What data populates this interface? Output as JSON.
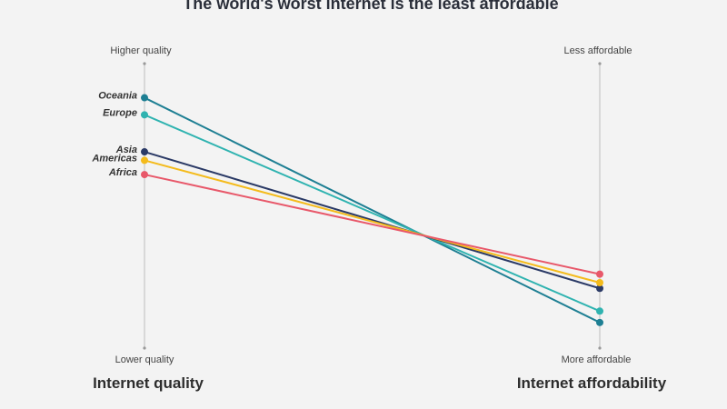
{
  "chart_data": {
    "type": "line",
    "title": "The world's worst internet is the least affordable",
    "axes": [
      {
        "name": "Internet quality",
        "top_label": "Higher quality",
        "bottom_label": "Lower quality"
      },
      {
        "name": "Internet affordability",
        "top_label": "Less affordable",
        "bottom_label": "More affordable"
      }
    ],
    "ylim": [
      0,
      100
    ],
    "series": [
      {
        "name": "Oceania",
        "color": "#1e7f93",
        "values": [
          88,
          9
        ]
      },
      {
        "name": "Europe",
        "color": "#2fb3b0",
        "values": [
          82,
          13
        ]
      },
      {
        "name": "Asia",
        "color": "#2b3a66",
        "values": [
          69,
          21
        ]
      },
      {
        "name": "Americas",
        "color": "#f4bb1c",
        "values": [
          66,
          23
        ]
      },
      {
        "name": "Africa",
        "color": "#e8586a",
        "values": [
          61,
          26
        ]
      }
    ]
  }
}
